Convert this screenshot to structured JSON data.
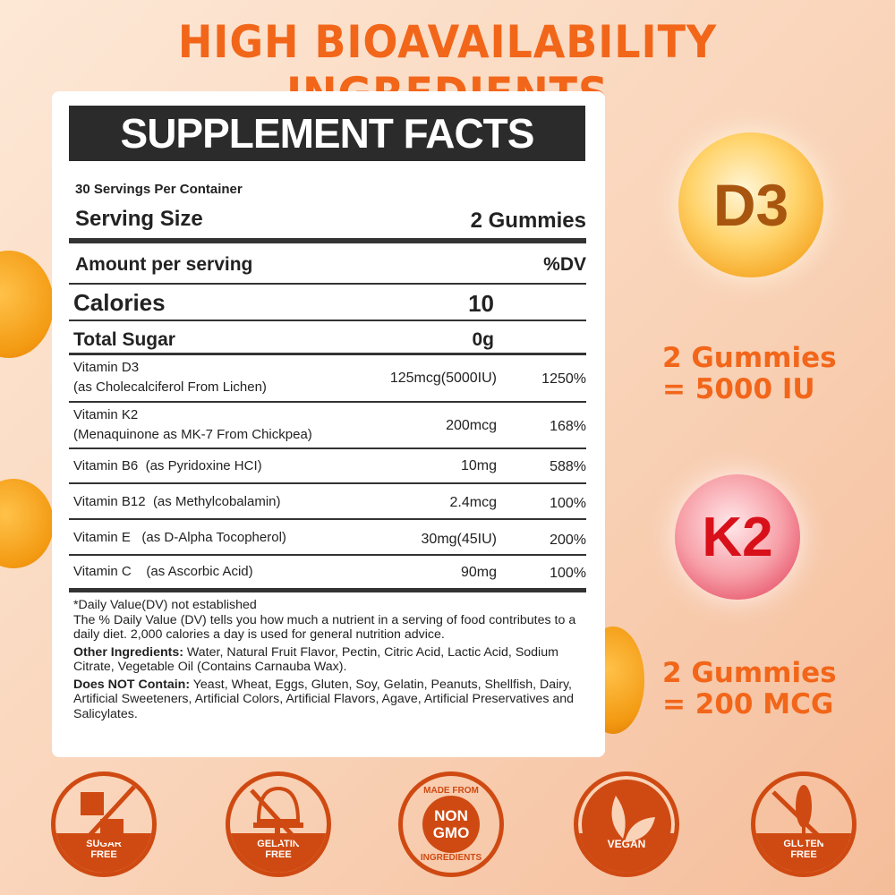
{
  "title": "HIGH BIOAVAILABILITY INGREDIENTS",
  "facts": {
    "header": "SUPPLEMENT FACTS",
    "servings_per_container": "30 Servings Per Container",
    "serving_size_label": "Serving Size",
    "serving_size_value": "2 Gummies",
    "amount_label": "Amount per serving",
    "dv_label": "%DV",
    "calories_label": "Calories",
    "calories_value": "10",
    "sugar_label": "Total Sugar",
    "sugar_value": "0g",
    "nutrients": [
      {
        "name": "Vitamin D3",
        "source": "(as Cholecalciferol From Lichen)",
        "amount": "125mcg(5000IU)",
        "dv": "1250%"
      },
      {
        "name": "Vitamin K2",
        "source": "(Menaquinone as MK-7 From Chickpea)",
        "amount": "200mcg",
        "dv": "168%"
      },
      {
        "name": "Vitamin B6  (as Pyridoxine HCI)",
        "amount": "10mg",
        "dv": "588%"
      },
      {
        "name": "Vitamin B12  (as Methylcobalamin)",
        "amount": "2.4mcg",
        "dv": "100%"
      },
      {
        "name": "Vitamin E   (as D-Alpha Tocopherol)",
        "amount": "30mg(45IU)",
        "dv": "200%"
      },
      {
        "name": "Vitamin C    (as Ascorbic Acid)",
        "amount": "90mg",
        "dv": "100%"
      }
    ],
    "footnote_dv": "*Daily Value(DV) not established",
    "footnote_text": "The % Daily Value (DV) tells you how much a nutrient in a serving of food contributes to a daily diet. 2,000 calories a day is used for general nutrition advice.",
    "other_label": "Other Ingredients:",
    "other_text": " Water, Natural Fruit Flavor, Pectin, Citric Acid, Lactic Acid, Sodium Citrate, Vegetable Oil (Contains Carnauba Wax).",
    "not_label": "Does NOT Contain:",
    "not_text": " Yeast, Wheat, Eggs, Gluten, Soy, Gelatin, Peanuts, Shellfish, Dairy, Artificial Sweeteners, Artificial Colors, Artificial Flavors, Agave, Artificial Preservatives and Salicylates."
  },
  "d3": {
    "label": "D3",
    "line1": "2 Gummies",
    "line2": "= 5000 IU"
  },
  "k2": {
    "label": "K2",
    "line1": "2 Gummies",
    "line2": "= 200 MCG"
  },
  "badges": [
    {
      "icon": "sugar-cubes-crossed-icon",
      "line1": "SUGAR",
      "line2": "FREE"
    },
    {
      "icon": "gelatin-crossed-icon",
      "line1": "GELATIN",
      "line2": "FREE"
    },
    {
      "icon": "non-gmo-icon",
      "top": "MADE FROM",
      "mid1": "NON",
      "mid2": "GMO",
      "bottom": "INGREDIENTS"
    },
    {
      "icon": "leaf-icon",
      "line1": "VEGAN"
    },
    {
      "icon": "wheat-crossed-icon",
      "line1": "GLUTEN",
      "line2": "FREE"
    }
  ],
  "colors": {
    "title": "#f2661a",
    "badge": "#cf4a12",
    "d3": "#a8560f",
    "k2": "#d8101a"
  }
}
